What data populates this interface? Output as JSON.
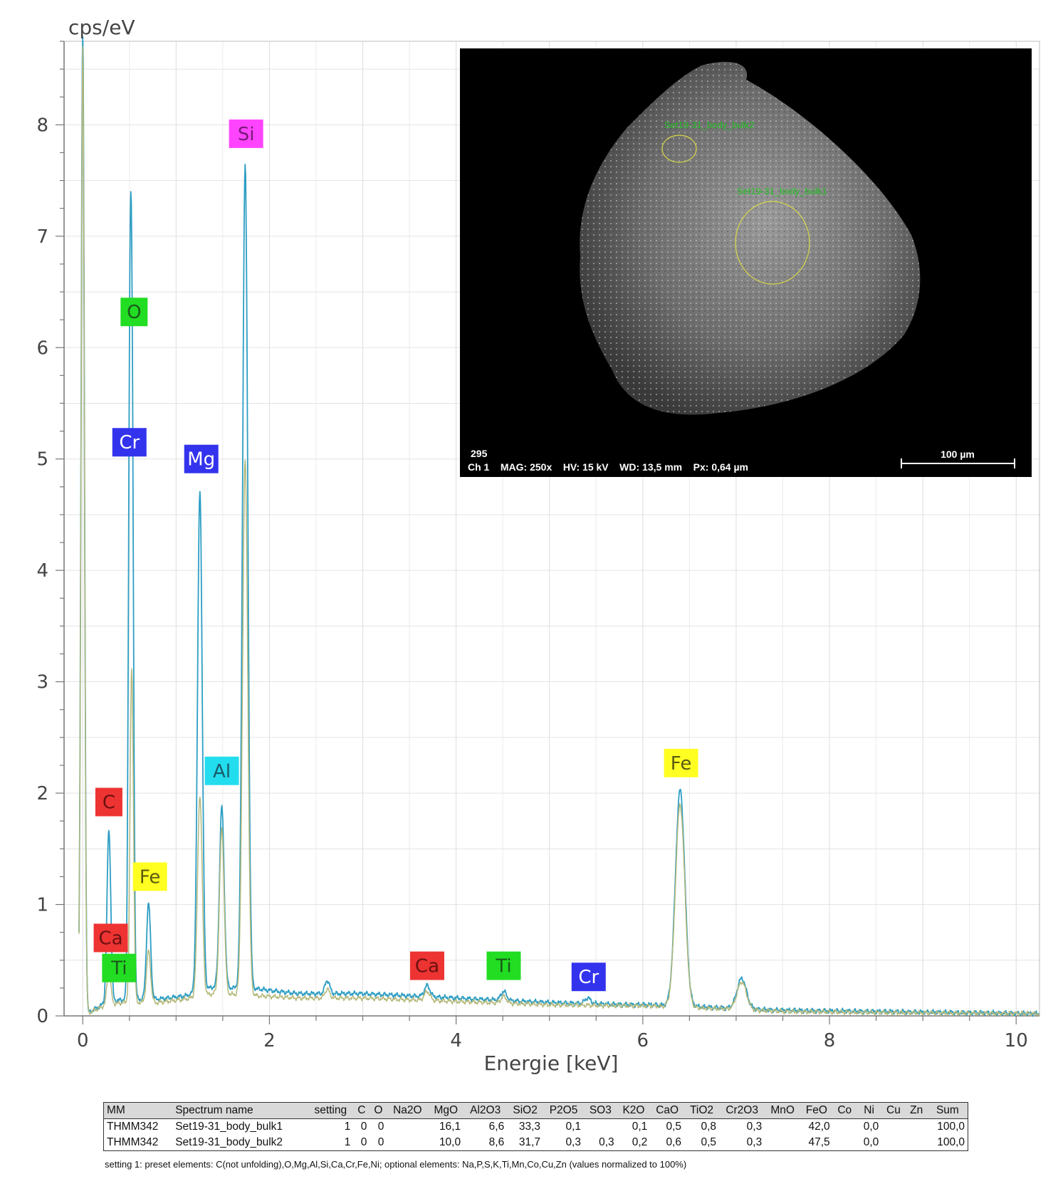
{
  "chart_data": {
    "type": "line",
    "ylabel": "cps/eV",
    "xlabel": "Energie [keV]",
    "xlim": [
      -0.2,
      10.25
    ],
    "ylim": [
      0,
      8.75
    ],
    "x_ticks": [
      "0",
      "2",
      "4",
      "6",
      "8",
      "10"
    ],
    "y_ticks": [
      "0",
      "1",
      "2",
      "3",
      "4",
      "5",
      "6",
      "7",
      "8"
    ],
    "grid": true,
    "series": [
      {
        "color": "#2e9ec4",
        "baseline": [
          [
            0.05,
            0.02
          ],
          [
            0.25,
            0.12
          ],
          [
            0.45,
            0.15
          ],
          [
            0.8,
            0.15
          ],
          [
            1.1,
            0.18
          ],
          [
            1.4,
            0.26
          ],
          [
            1.9,
            0.24
          ],
          [
            2.3,
            0.2
          ],
          [
            3.0,
            0.2
          ],
          [
            4.0,
            0.16
          ],
          [
            5.0,
            0.12
          ],
          [
            5.9,
            0.1
          ],
          [
            6.1,
            0.1
          ],
          [
            7.5,
            0.05
          ],
          [
            8.5,
            0.04
          ],
          [
            10.25,
            0.02
          ]
        ],
        "peaks": [
          {
            "x": 0.0,
            "h": 8.9,
            "w": 0.018
          },
          {
            "x": 0.28,
            "h": 1.55,
            "w": 0.02
          },
          {
            "x": 0.525,
            "h": 5.9,
            "w": 0.018
          },
          {
            "x": 0.5,
            "h": 3.6,
            "w": 0.015
          },
          {
            "x": 0.705,
            "h": 0.86,
            "w": 0.022
          },
          {
            "x": 1.255,
            "h": 4.5,
            "w": 0.025
          },
          {
            "x": 1.49,
            "h": 1.62,
            "w": 0.025
          },
          {
            "x": 1.74,
            "h": 7.4,
            "w": 0.028
          },
          {
            "x": 2.62,
            "h": 0.12,
            "w": 0.025
          },
          {
            "x": 3.69,
            "h": 0.1,
            "w": 0.03
          },
          {
            "x": 4.51,
            "h": 0.08,
            "w": 0.03
          },
          {
            "x": 5.41,
            "h": 0.05,
            "w": 0.03
          },
          {
            "x": 6.4,
            "h": 1.94,
            "w": 0.05
          },
          {
            "x": 7.06,
            "h": 0.27,
            "w": 0.05
          }
        ]
      },
      {
        "color": "#b4b87a",
        "baseline": [
          [
            0.05,
            0.02
          ],
          [
            0.25,
            0.1
          ],
          [
            0.45,
            0.12
          ],
          [
            0.8,
            0.12
          ],
          [
            1.1,
            0.15
          ],
          [
            1.4,
            0.2
          ],
          [
            1.9,
            0.18
          ],
          [
            2.3,
            0.16
          ],
          [
            3.0,
            0.16
          ],
          [
            4.0,
            0.13
          ],
          [
            5.0,
            0.1
          ],
          [
            5.9,
            0.09
          ],
          [
            6.1,
            0.09
          ],
          [
            7.5,
            0.04
          ],
          [
            8.5,
            0.03
          ],
          [
            10.25,
            0.02
          ]
        ],
        "peaks": [
          {
            "x": 0.0,
            "h": 8.7,
            "w": 0.018
          },
          {
            "x": 0.28,
            "h": 0.3,
            "w": 0.02
          },
          {
            "x": 0.525,
            "h": 3.0,
            "w": 0.018
          },
          {
            "x": 0.705,
            "h": 0.46,
            "w": 0.022
          },
          {
            "x": 1.255,
            "h": 1.8,
            "w": 0.025
          },
          {
            "x": 1.49,
            "h": 1.48,
            "w": 0.025
          },
          {
            "x": 1.74,
            "h": 4.8,
            "w": 0.028
          },
          {
            "x": 2.62,
            "h": 0.08,
            "w": 0.025
          },
          {
            "x": 3.69,
            "h": 0.08,
            "w": 0.03
          },
          {
            "x": 4.51,
            "h": 0.06,
            "w": 0.03
          },
          {
            "x": 6.4,
            "h": 1.82,
            "w": 0.05
          },
          {
            "x": 7.06,
            "h": 0.25,
            "w": 0.05
          }
        ]
      }
    ],
    "element_labels": [
      {
        "text": "Si",
        "x": 1.75,
        "y": 7.92,
        "bg": "#ff44ff",
        "fg": "#7a1a7a"
      },
      {
        "text": "O",
        "x": 0.55,
        "y": 6.32,
        "bg": "#22dd22",
        "fg": "#1a5a1a"
      },
      {
        "text": "Cr",
        "x": 0.5,
        "y": 5.15,
        "bg": "#3333ee",
        "fg": "#ffffff"
      },
      {
        "text": "Mg",
        "x": 1.27,
        "y": 5.0,
        "bg": "#3333ee",
        "fg": "#ffffff"
      },
      {
        "text": "Al",
        "x": 1.49,
        "y": 2.2,
        "bg": "#22ddee",
        "fg": "#1a5a6a"
      },
      {
        "text": "C",
        "x": 0.28,
        "y": 1.92,
        "bg": "#ee3333",
        "fg": "#6a1111"
      },
      {
        "text": "Fe",
        "x": 0.72,
        "y": 1.25,
        "bg": "#ffff22",
        "fg": "#5a5a11"
      },
      {
        "text": "Ca",
        "x": 0.3,
        "y": 0.7,
        "bg": "#ee3333",
        "fg": "#6a1111"
      },
      {
        "text": "Ti",
        "x": 0.39,
        "y": 0.43,
        "bg": "#22dd22",
        "fg": "#1a5a1a"
      },
      {
        "text": "Ca",
        "x": 3.69,
        "y": 0.45,
        "bg": "#ee3333",
        "fg": "#6a1111"
      },
      {
        "text": "Ti",
        "x": 4.51,
        "y": 0.45,
        "bg": "#22dd22",
        "fg": "#1a5a1a"
      },
      {
        "text": "Cr",
        "x": 5.42,
        "y": 0.35,
        "bg": "#3333ee",
        "fg": "#ffffff"
      },
      {
        "text": "Fe",
        "x": 6.41,
        "y": 2.27,
        "bg": "#ffff22",
        "fg": "#5a5a11"
      }
    ]
  },
  "sem_image": {
    "line1": "295",
    "line2": "Ch 1    MAG: 250x    HV: 15 kV    WD: 13,5 mm    Px: 0,64 µm",
    "scalebar": "100 µm",
    "roi_1": "Set19-31_body_bulk2",
    "roi_2": "Set19-31_body_bulk1"
  },
  "table": {
    "headers": [
      "MM",
      "Spectrum name",
      "setting",
      "C",
      "O",
      "Na2O",
      "MgO",
      "Al2O3",
      "SiO2",
      "P2O5",
      "SO3",
      "K2O",
      "CaO",
      "TiO2",
      "Cr2O3",
      "MnO",
      "FeO",
      "Co",
      "Ni",
      "Cu",
      "Zn",
      "Sum"
    ],
    "rows": [
      [
        "THMM342",
        "Set19-31_body_bulk1",
        "1",
        "0",
        "0",
        "",
        "16,1",
        "6,6",
        "33,3",
        "0,1",
        "",
        "0,1",
        "0,5",
        "0,8",
        "0,3",
        "",
        "42,0",
        "",
        "0,0",
        "",
        "",
        "100,0"
      ],
      [
        "THMM342",
        "Set19-31_body_bulk2",
        "1",
        "0",
        "0",
        "",
        "10,0",
        "8,6",
        "31,7",
        "0,3",
        "0,3",
        "0,2",
        "0,6",
        "0,5",
        "0,3",
        "",
        "47,5",
        "",
        "0,0",
        "",
        "",
        "100,0"
      ]
    ],
    "footnote": "setting 1: preset elements: C(not unfolding),O,Mg,Al,Si,Ca,Cr,Fe,Ni; optional elements: Na,P,S,K,Ti,Mn,Co,Cu,Zn (values normalized to 100%)"
  }
}
